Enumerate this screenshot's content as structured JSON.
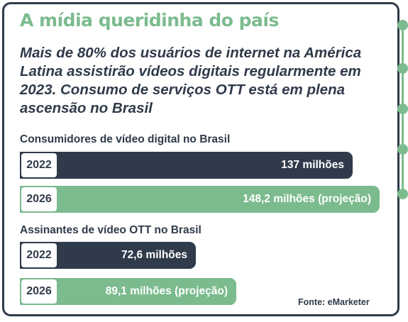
{
  "title": "A mídia queridinha do país",
  "subtitle": "Mais de 80% dos usuários de internet na América Latina assistirão vídeos digitais regularmente em 2023. Consumo de serviços OTT está em plena ascensão no Brasil",
  "source": "Fonte: eMarketer",
  "colors": {
    "dark": "#2f3a4a",
    "green": "#7cbb8e"
  },
  "chart_data": [
    {
      "type": "bar",
      "title": "Consumidores de vídeo digital no Brasil",
      "unit": "milhões",
      "categories": [
        "2022",
        "2026"
      ],
      "values": [
        137,
        148.2
      ],
      "labels": [
        "137 milhões",
        "148,2 milhões (projeção)"
      ],
      "styles": [
        "dark",
        "green"
      ]
    },
    {
      "type": "bar",
      "title": "Assinantes de vídeo OTT no Brasil",
      "unit": "milhões",
      "categories": [
        "2022",
        "2026"
      ],
      "values": [
        72.6,
        89.1
      ],
      "labels": [
        "72,6 milhões",
        "89,1 milhões (projeção)"
      ],
      "styles": [
        "dark",
        "green"
      ]
    }
  ]
}
